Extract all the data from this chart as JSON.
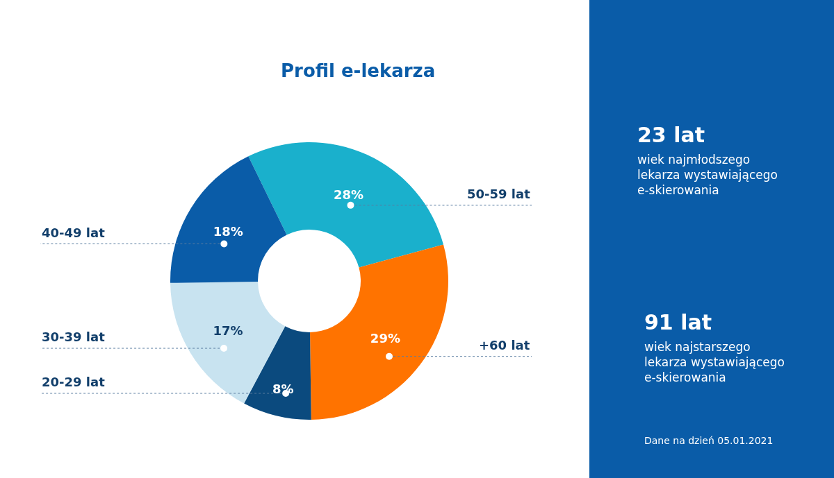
{
  "chart_data": {
    "type": "donut",
    "title": "Profil e-lekarza",
    "categories": [
      "50-59 lat",
      "+60 lat",
      "20-29 lat",
      "30-39 lat",
      "40-49 lat"
    ],
    "values": [
      28,
      29,
      8,
      17,
      18
    ],
    "value_labels": [
      "28%",
      "29%",
      "8%",
      "17%",
      "18%"
    ],
    "colors": [
      "#1ab0cc",
      "#ff7300",
      "#0b4a7e",
      "#c8e3f0",
      "#0a5ca8"
    ],
    "legend": false,
    "annotations": [
      "23 lat",
      "wiek najmłodszego\nlekarza wystawiającego\ne-skierowania",
      "91 lat",
      "wiek najstarszego\nlekarza wystawiającego\ne-skierowania",
      "Dane na dzień 05.01.2021"
    ]
  }
}
